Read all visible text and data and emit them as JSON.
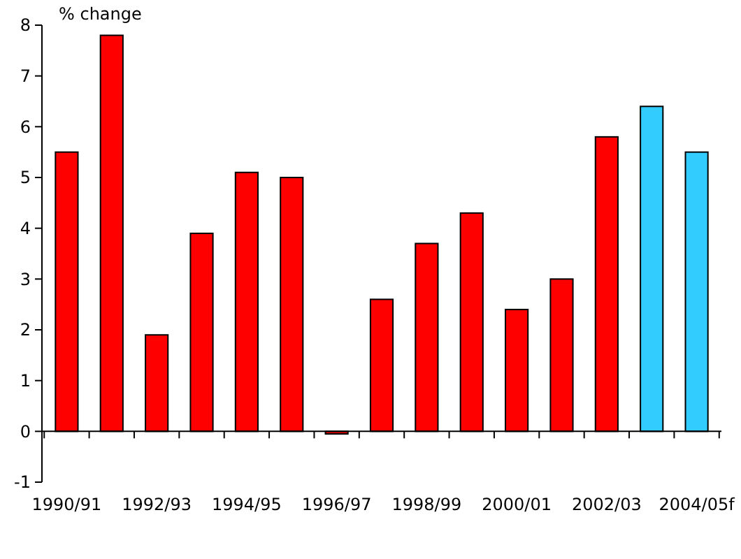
{
  "chart_data": {
    "type": "bar",
    "ylabel": "% change",
    "categories": [
      "1990/91",
      null,
      "1992/93",
      null,
      "1994/95",
      null,
      "1996/97",
      null,
      "1998/99",
      null,
      "2000/01",
      null,
      "2002/03",
      null,
      "2004/05f"
    ],
    "values": [
      5.5,
      7.8,
      1.9,
      3.9,
      5.1,
      5.0,
      -0.05,
      2.6,
      3.7,
      4.3,
      2.4,
      3.0,
      5.8,
      6.4,
      5.5
    ],
    "colors": [
      "#ff0000",
      "#ff0000",
      "#ff0000",
      "#ff0000",
      "#ff0000",
      "#ff0000",
      "#ff0000",
      "#ff0000",
      "#ff0000",
      "#ff0000",
      "#ff0000",
      "#ff0000",
      "#ff0000",
      "#33ccff",
      "#33ccff"
    ],
    "ylim": [
      -1,
      8
    ],
    "yticks": [
      -1,
      0,
      1,
      2,
      3,
      4,
      5,
      6,
      7,
      8
    ]
  }
}
